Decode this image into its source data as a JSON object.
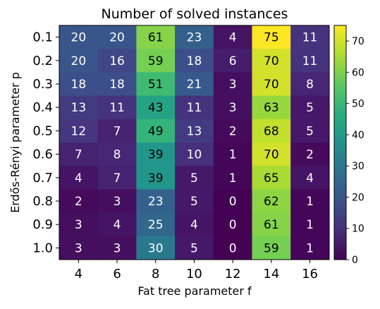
{
  "chart_data": {
    "type": "heatmap",
    "title": "Number of solved instances",
    "xlabel": "Fat tree parameter f",
    "ylabel": "Erdős-Rényi parameter p",
    "x": [
      "4",
      "6",
      "8",
      "10",
      "12",
      "14",
      "16"
    ],
    "y": [
      "0.1",
      "0.2",
      "0.3",
      "0.4",
      "0.5",
      "0.6",
      "0.7",
      "0.8",
      "0.9",
      "1.0"
    ],
    "values": [
      [
        20,
        20,
        61,
        23,
        4,
        75,
        11
      ],
      [
        20,
        16,
        59,
        18,
        6,
        70,
        11
      ],
      [
        18,
        18,
        51,
        21,
        3,
        70,
        8
      ],
      [
        13,
        11,
        43,
        11,
        3,
        63,
        5
      ],
      [
        12,
        7,
        49,
        13,
        2,
        68,
        5
      ],
      [
        7,
        8,
        39,
        10,
        1,
        70,
        2
      ],
      [
        4,
        7,
        39,
        5,
        1,
        65,
        4
      ],
      [
        2,
        3,
        23,
        5,
        0,
        62,
        1
      ],
      [
        3,
        4,
        25,
        4,
        0,
        61,
        1
      ],
      [
        3,
        3,
        30,
        5,
        0,
        59,
        1
      ]
    ],
    "colorbar": {
      "colormap": "viridis",
      "range": [
        0,
        75
      ],
      "ticks": [
        "0",
        "10",
        "20",
        "30",
        "40",
        "50",
        "60",
        "70"
      ]
    },
    "dark_text_color": "#000000",
    "light_text_color": "#ffffff"
  }
}
